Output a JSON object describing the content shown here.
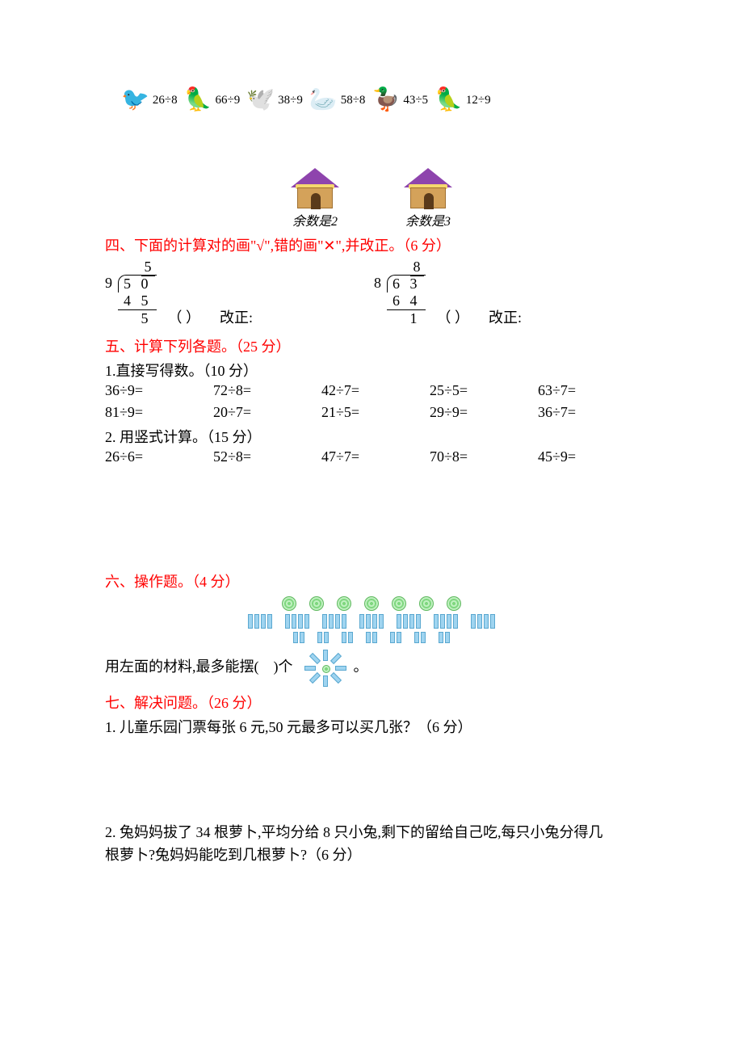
{
  "colors": {
    "heading": "#ff0000",
    "text": "#000000",
    "background": "#ffffff"
  },
  "birds": {
    "items": [
      {
        "label": "26÷8",
        "emoji": "🐦",
        "color": "#d33"
      },
      {
        "label": "66÷9",
        "emoji": "🦜",
        "color": "#222"
      },
      {
        "label": "38÷9",
        "emoji": "🕊️",
        "color": "#6c6"
      },
      {
        "label": "58÷8",
        "emoji": "🦢",
        "color": "#ccc"
      },
      {
        "label": "43÷5",
        "emoji": "🦆",
        "color": "#eee"
      },
      {
        "label": "12÷9",
        "emoji": "🦜",
        "color": "#d33"
      }
    ]
  },
  "houses": {
    "left_label": "余数是2",
    "right_label": "余数是3"
  },
  "section4": {
    "title": "四、下面的计算对的画\"√\",错的画\"✕\",并改正。（6 分）",
    "problems": [
      {
        "divisor": "9",
        "dividend": "5 0",
        "quotient": "5",
        "step": "4 5",
        "remainder": "5",
        "paren": "（  ）",
        "correction": "改正:"
      },
      {
        "divisor": "8",
        "dividend": "6 3",
        "quotient": "8",
        "step": "6 4",
        "remainder": "1",
        "paren": "（  ）",
        "correction": "改正:"
      }
    ]
  },
  "section5": {
    "title": "五、计算下列各题。（25 分）",
    "sub1_title": "1.直接写得数。（10 分）",
    "sub1_items": [
      "36÷9=",
      "72÷8=",
      "42÷7=",
      "25÷5=",
      "63÷7=",
      "81÷9=",
      "20÷7=",
      "21÷5=",
      "29÷9=",
      "36÷7="
    ],
    "sub2_title": "2. 用竖式计算。（15 分）",
    "sub2_items": [
      "26÷6=",
      "52÷8=",
      "47÷7=",
      "70÷8=",
      "45÷9="
    ]
  },
  "section6": {
    "title": "六、操作题。（4 分）",
    "question_prefix": "用左面的材料,最多能摆(",
    "question_suffix": ")个",
    "question_end": "。",
    "circles_count": 7,
    "long_rect_groups": 7,
    "long_per_group": 4,
    "short_rect_groups": 7,
    "short_per_group": 2
  },
  "section7": {
    "title": "七、解决问题。（26 分）",
    "q1": "1. 儿童乐园门票每张 6 元,50 元最多可以买几张？（6 分）",
    "q2a": "2. 兔妈妈拔了 34 根萝卜,平均分给 8 只小兔,剩下的留给自己吃,每只小兔分得几",
    "q2b": "根萝卜?兔妈妈能吃到几根萝卜?（6 分）"
  }
}
